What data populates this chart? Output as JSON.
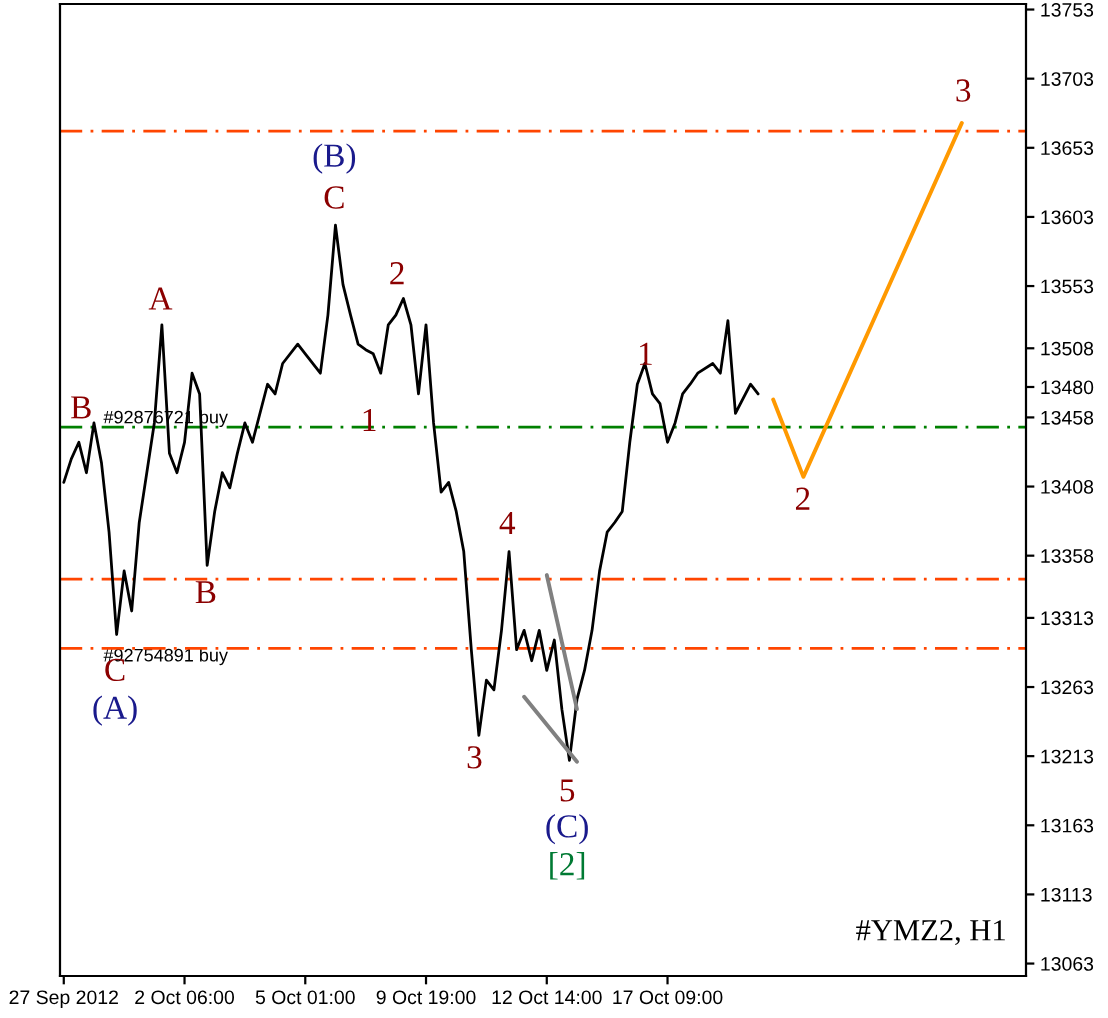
{
  "chart_data": {
    "type": "line",
    "categories": [
      "27 Sep 2012",
      null,
      null,
      null,
      null,
      null,
      null,
      null,
      null,
      null,
      null,
      null,
      null,
      null,
      null,
      null,
      "2 Oct 06:00",
      null,
      null,
      null,
      null,
      null,
      null,
      null,
      null,
      null,
      null,
      null,
      null,
      null,
      null,
      null,
      "5 Oct 01:00",
      null,
      null,
      null,
      null,
      null,
      null,
      null,
      null,
      null,
      null,
      null,
      null,
      null,
      null,
      null,
      "9 Oct 19:00",
      null,
      null,
      null,
      null,
      null,
      null,
      null,
      null,
      null,
      null,
      null,
      null,
      null,
      null,
      null,
      "12 Oct 14:00",
      null,
      null,
      null,
      null,
      null,
      null,
      null,
      null,
      null,
      null,
      null,
      null,
      null,
      null,
      null,
      "17 Oct 09:00",
      null,
      null,
      null,
      null,
      null,
      null,
      null,
      null,
      null,
      null,
      null,
      null,
      null,
      null,
      null,
      null,
      null,
      null,
      null,
      null,
      null,
      null,
      null,
      null,
      null,
      null,
      null,
      null,
      null,
      null,
      null,
      null,
      null,
      null,
      null,
      null,
      null,
      null,
      null,
      null,
      null,
      null,
      null,
      null,
      null,
      null,
      null
    ],
    "ylim": [
      13054,
      13757
    ],
    "yticks": [
      13063,
      13113,
      13163,
      13213,
      13263,
      13313,
      13358,
      13408,
      13458,
      13480,
      13508,
      13553,
      13603,
      13653,
      13703,
      13753
    ],
    "grid": false,
    "legend": false,
    "series": [
      {
        "color": "#000000",
        "values": [
          13411,
          13428,
          13440,
          13418,
          13454,
          13425,
          13375,
          13301,
          13347,
          13318,
          13382,
          13418,
          13454,
          13525,
          13432,
          13418,
          13440,
          13490,
          13475,
          13351,
          13390,
          13418,
          13407,
          13432,
          13454,
          13440,
          null,
          13482,
          13475,
          13497,
          null,
          13511,
          13504,
          null,
          13490,
          13532,
          13597,
          13554,
          13532,
          13511,
          13507,
          13504,
          13490,
          13525,
          13532,
          13544,
          13525,
          13475,
          13525,
          13454,
          13404,
          13411,
          13390,
          13361,
          13290,
          13228,
          13268,
          13261,
          13304,
          13361,
          13290,
          13304,
          13282,
          13304,
          13275,
          13297,
          13247,
          13210,
          13254,
          13275,
          13304,
          13347,
          13375,
          13382,
          13390,
          13440,
          13482,
          13497,
          13475,
          13468,
          13440,
          13454,
          13475,
          13482,
          13490,
          null,
          13497,
          13490,
          13528,
          13461,
          null,
          13482,
          13475,
          null,
          null,
          null,
          null,
          null,
          null,
          null,
          null,
          null,
          null,
          null,
          null,
          null,
          null,
          null,
          null,
          null,
          null,
          null,
          null,
          null,
          null,
          null,
          null,
          null,
          null,
          null,
          null,
          null,
          null,
          null,
          null,
          null,
          null,
          null
        ]
      },
      {
        "color": "#ff9900",
        "values": [
          null,
          null,
          null,
          null,
          null,
          null,
          null,
          null,
          null,
          null,
          null,
          null,
          null,
          null,
          null,
          null,
          null,
          null,
          null,
          null,
          null,
          null,
          null,
          null,
          null,
          null,
          null,
          null,
          null,
          null,
          null,
          null,
          null,
          null,
          null,
          null,
          null,
          null,
          null,
          null,
          null,
          null,
          null,
          null,
          null,
          null,
          null,
          null,
          null,
          null,
          null,
          null,
          null,
          null,
          null,
          null,
          null,
          null,
          null,
          null,
          null,
          null,
          null,
          null,
          null,
          null,
          null,
          null,
          null,
          null,
          null,
          null,
          null,
          null,
          null,
          null,
          null,
          null,
          null,
          null,
          null,
          null,
          null,
          null,
          null,
          null,
          null,
          null,
          null,
          null,
          null,
          null,
          null,
          null,
          13471,
          null,
          null,
          null,
          13415,
          null,
          null,
          null,
          null,
          null,
          null,
          null,
          null,
          null,
          null,
          null,
          null,
          null,
          null,
          null,
          null,
          null,
          null,
          null,
          null,
          13671,
          null,
          null,
          null,
          null,
          null,
          null,
          null,
          null
        ]
      },
      {
        "color": "#808080",
        "values": [
          null,
          null,
          null,
          null,
          null,
          null,
          null,
          null,
          null,
          null,
          null,
          null,
          null,
          null,
          null,
          null,
          null,
          null,
          null,
          null,
          null,
          null,
          null,
          null,
          null,
          null,
          null,
          null,
          null,
          null,
          null,
          null,
          null,
          null,
          null,
          null,
          null,
          null,
          null,
          null,
          null,
          null,
          null,
          null,
          null,
          null,
          null,
          null,
          null,
          null,
          null,
          null,
          null,
          null,
          null,
          null,
          null,
          null,
          null,
          null,
          null,
          13256,
          null,
          null,
          null,
          null,
          null,
          null,
          13209,
          null,
          null,
          null,
          null,
          null,
          null,
          null,
          null,
          null,
          null,
          null,
          null,
          null,
          null,
          null,
          null,
          null,
          null,
          null,
          null,
          null,
          null,
          null,
          null,
          null,
          null,
          null,
          null,
          null,
          null,
          null,
          null,
          null,
          null,
          null,
          null,
          null,
          null,
          null,
          null,
          null,
          null,
          null,
          null,
          null,
          null,
          null,
          null,
          null,
          null,
          null,
          null,
          null,
          null,
          null,
          null,
          null,
          null,
          null
        ]
      },
      {
        "color": "#808080",
        "values": [
          null,
          null,
          null,
          null,
          null,
          null,
          null,
          null,
          null,
          null,
          null,
          null,
          null,
          null,
          null,
          null,
          null,
          null,
          null,
          null,
          null,
          null,
          null,
          null,
          null,
          null,
          null,
          null,
          null,
          null,
          null,
          null,
          null,
          null,
          null,
          null,
          null,
          null,
          null,
          null,
          null,
          null,
          null,
          null,
          null,
          null,
          null,
          null,
          null,
          null,
          null,
          null,
          null,
          null,
          null,
          null,
          null,
          null,
          null,
          null,
          null,
          null,
          null,
          null,
          13344,
          null,
          null,
          null,
          13247,
          null,
          null,
          null,
          null,
          null,
          null,
          null,
          null,
          null,
          null,
          null,
          null,
          null,
          null,
          null,
          null,
          null,
          null,
          null,
          null,
          null,
          null,
          null,
          null,
          null,
          null,
          null,
          null,
          null,
          null,
          null,
          null,
          null,
          null,
          null,
          null,
          null,
          null,
          null,
          null,
          null,
          null,
          null,
          null,
          null,
          null,
          null,
          null,
          null,
          null,
          null,
          null,
          null,
          null,
          null,
          null,
          null,
          null,
          null
        ]
      }
    ],
    "ref_lines": [
      {
        "axis": "y",
        "value": 13665,
        "color": "#ff4500",
        "line_style": "dashed"
      },
      {
        "axis": "y",
        "value": 13451,
        "color": "#008000",
        "line_style": "dashed",
        "label": "#92876721 buy"
      },
      {
        "axis": "y",
        "value": 13341,
        "color": "#ff4500",
        "line_style": "dashed"
      },
      {
        "axis": "y",
        "value": 13291,
        "color": "#ff4500",
        "line_style": "dashed",
        "label": "#92754891 buy"
      }
    ],
    "annotations": [
      "B",
      "A",
      "C",
      "(A)",
      "B",
      "(B)",
      "C",
      "2",
      "1",
      "4",
      "3",
      "5",
      "(C)",
      "[2]",
      "1",
      "2",
      "3",
      "#YMZ2, H1"
    ]
  }
}
